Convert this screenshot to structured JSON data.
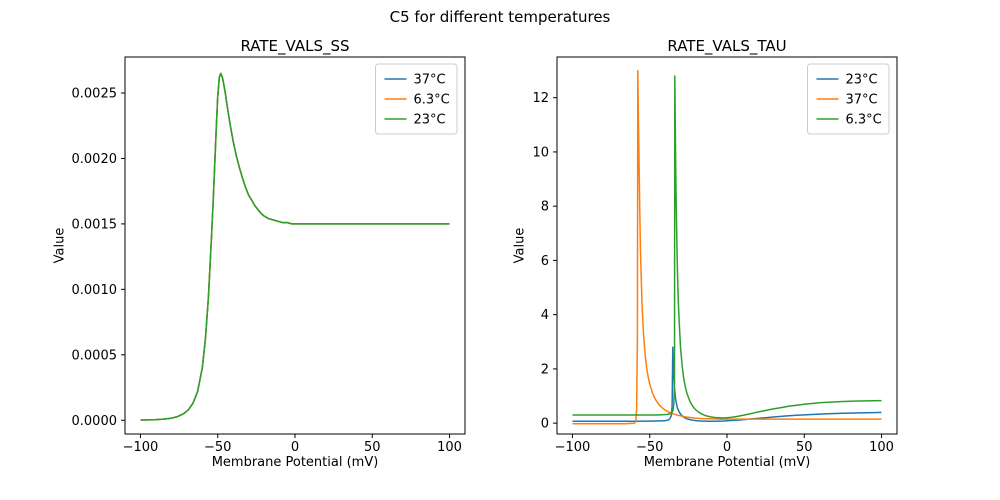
{
  "figure": {
    "title": "C5 for different temperatures"
  },
  "palette": {
    "blue": "#1f77b4",
    "orange": "#ff7f0e",
    "green": "#2ca02c"
  },
  "chart_data": [
    {
      "type": "line",
      "title": "RATE_VALS_SS",
      "xlabel": "Membrane Potential (mV)",
      "ylabel": "Value",
      "xlim": [
        -110,
        110
      ],
      "ylim": [
        -0.000105,
        0.002775
      ],
      "grid": false,
      "legend_position": "upper right",
      "xticks": {
        "values": [
          -100,
          -50,
          0,
          50,
          100
        ],
        "labels": [
          "−100",
          "−50",
          "0",
          "50",
          "100"
        ]
      },
      "yticks": {
        "values": [
          0,
          0.0005,
          0.001,
          0.0015,
          0.002,
          0.0025
        ],
        "labels": [
          "0.0000",
          "0.0005",
          "0.0010",
          "0.0015",
          "0.0020",
          "0.0025"
        ]
      },
      "series": [
        {
          "name": "37°C",
          "color": "#1f77b4",
          "x": [
            -100,
            -95,
            -90,
            -85,
            -80,
            -76,
            -72,
            -69,
            -66,
            -63,
            -60,
            -58,
            -56,
            -54,
            -53,
            -52,
            -51,
            -50,
            -49,
            -48,
            -47,
            -46,
            -45,
            -44,
            -42,
            -40,
            -38,
            -36,
            -34,
            -32,
            -30,
            -28,
            -26,
            -24,
            -22,
            -20,
            -17,
            -14,
            -11,
            -8,
            -5,
            -2,
            0,
            5,
            10,
            20,
            30,
            40,
            50,
            60,
            70,
            80,
            90,
            100
          ],
          "y": [
            2e-06,
            3e-06,
            5e-06,
            9e-06,
            1.6e-05,
            2.8e-05,
            5e-05,
            8e-05,
            0.00013,
            0.00022,
            0.0004,
            0.00062,
            0.00095,
            0.0014,
            0.00166,
            0.00193,
            0.00222,
            0.00247,
            0.00262,
            0.00265,
            0.00262,
            0.00256,
            0.00249,
            0.00241,
            0.00226,
            0.00213,
            0.00202,
            0.00193,
            0.00185,
            0.00178,
            0.00172,
            0.00168,
            0.00164,
            0.00161,
            0.00158,
            0.00156,
            0.00154,
            0.00153,
            0.00152,
            0.00151,
            0.00151,
            0.0015,
            0.0015,
            0.0015,
            0.0015,
            0.0015,
            0.0015,
            0.0015,
            0.0015,
            0.0015,
            0.0015,
            0.0015,
            0.0015,
            0.0015
          ]
        },
        {
          "name": "6.3°C",
          "color": "#ff7f0e",
          "x": [
            -100,
            -95,
            -90,
            -85,
            -80,
            -76,
            -72,
            -69,
            -66,
            -63,
            -60,
            -58,
            -56,
            -54,
            -53,
            -52,
            -51,
            -50,
            -49,
            -48,
            -47,
            -46,
            -45,
            -44,
            -42,
            -40,
            -38,
            -36,
            -34,
            -32,
            -30,
            -28,
            -26,
            -24,
            -22,
            -20,
            -17,
            -14,
            -11,
            -8,
            -5,
            -2,
            0,
            5,
            10,
            20,
            30,
            40,
            50,
            60,
            70,
            80,
            90,
            100
          ],
          "y": [
            2e-06,
            3e-06,
            5e-06,
            9e-06,
            1.6e-05,
            2.8e-05,
            5e-05,
            8e-05,
            0.00013,
            0.00022,
            0.0004,
            0.00062,
            0.00095,
            0.0014,
            0.00166,
            0.00193,
            0.00222,
            0.00247,
            0.00262,
            0.00265,
            0.00262,
            0.00256,
            0.00249,
            0.00241,
            0.00226,
            0.00213,
            0.00202,
            0.00193,
            0.00185,
            0.00178,
            0.00172,
            0.00168,
            0.00164,
            0.00161,
            0.00158,
            0.00156,
            0.00154,
            0.00153,
            0.00152,
            0.00151,
            0.00151,
            0.0015,
            0.0015,
            0.0015,
            0.0015,
            0.0015,
            0.0015,
            0.0015,
            0.0015,
            0.0015,
            0.0015,
            0.0015,
            0.0015,
            0.0015
          ]
        },
        {
          "name": "23°C",
          "color": "#2ca02c",
          "x": [
            -100,
            -95,
            -90,
            -85,
            -80,
            -76,
            -72,
            -69,
            -66,
            -63,
            -60,
            -58,
            -56,
            -54,
            -53,
            -52,
            -51,
            -50,
            -49,
            -48,
            -47,
            -46,
            -45,
            -44,
            -42,
            -40,
            -38,
            -36,
            -34,
            -32,
            -30,
            -28,
            -26,
            -24,
            -22,
            -20,
            -17,
            -14,
            -11,
            -8,
            -5,
            -2,
            0,
            5,
            10,
            20,
            30,
            40,
            50,
            60,
            70,
            80,
            90,
            100
          ],
          "y": [
            2e-06,
            3e-06,
            5e-06,
            9e-06,
            1.6e-05,
            2.8e-05,
            5e-05,
            8e-05,
            0.00013,
            0.00022,
            0.0004,
            0.00062,
            0.00095,
            0.0014,
            0.00166,
            0.00193,
            0.00222,
            0.00247,
            0.00262,
            0.00265,
            0.00262,
            0.00256,
            0.00249,
            0.00241,
            0.00226,
            0.00213,
            0.00202,
            0.00193,
            0.00185,
            0.00178,
            0.00172,
            0.00168,
            0.00164,
            0.00161,
            0.00158,
            0.00156,
            0.00154,
            0.00153,
            0.00152,
            0.00151,
            0.00151,
            0.0015,
            0.0015,
            0.0015,
            0.0015,
            0.0015,
            0.0015,
            0.0015,
            0.0015,
            0.0015,
            0.0015,
            0.0015,
            0.0015,
            0.0015
          ]
        }
      ]
    },
    {
      "type": "line",
      "title": "RATE_VALS_TAU",
      "xlabel": "Membrane Potential (mV)",
      "ylabel": "Value",
      "xlim": [
        -110,
        110
      ],
      "ylim": [
        -0.4,
        13.5
      ],
      "grid": false,
      "legend_position": "upper right",
      "xticks": {
        "values": [
          -100,
          -50,
          0,
          50,
          100
        ],
        "labels": [
          "−100",
          "−50",
          "0",
          "50",
          "100"
        ]
      },
      "yticks": {
        "values": [
          0,
          2,
          4,
          6,
          8,
          10,
          12
        ],
        "labels": [
          "0",
          "2",
          "4",
          "6",
          "8",
          "10",
          "12"
        ]
      },
      "series": [
        {
          "name": "23°C",
          "color": "#1f77b4",
          "x": [
            -100,
            -90,
            -80,
            -70,
            -60,
            -52,
            -46,
            -42,
            -40,
            -38,
            -37,
            -36,
            -35.5,
            -35.1,
            -34.7,
            -34.3,
            -34,
            -33.5,
            -33,
            -32,
            -31,
            -30,
            -29,
            -28,
            -27,
            -26,
            -24,
            -22,
            -20,
            -17,
            -14,
            -11,
            -8,
            -5,
            -2,
            0,
            4,
            8,
            12,
            16,
            20,
            25,
            30,
            35,
            40,
            45,
            50,
            55,
            60,
            65,
            70,
            75,
            80,
            85,
            90,
            95,
            100
          ],
          "y": [
            0.07,
            0.07,
            0.07,
            0.07,
            0.07,
            0.075,
            0.08,
            0.085,
            0.09,
            0.12,
            0.16,
            0.28,
            0.6,
            2.8,
            2.2,
            1.6,
            1.3,
            1.0,
            0.8,
            0.55,
            0.42,
            0.33,
            0.27,
            0.22,
            0.19,
            0.16,
            0.13,
            0.11,
            0.095,
            0.08,
            0.075,
            0.07,
            0.07,
            0.075,
            0.08,
            0.085,
            0.1,
            0.115,
            0.135,
            0.155,
            0.175,
            0.2,
            0.225,
            0.25,
            0.27,
            0.29,
            0.305,
            0.32,
            0.335,
            0.345,
            0.355,
            0.365,
            0.372,
            0.378,
            0.384,
            0.39,
            0.395
          ]
        },
        {
          "name": "37°C",
          "color": "#ff7f0e",
          "x": [
            -100,
            -90,
            -80,
            -72,
            -66,
            -62,
            -60,
            -59,
            -58.5,
            -58,
            -57.7,
            -57.4,
            -57,
            -56.5,
            -56,
            -55,
            -54,
            -53,
            -52,
            -51,
            -50,
            -49,
            -48,
            -47,
            -46,
            -44,
            -42,
            -40,
            -38,
            -36,
            -34,
            -32,
            -30,
            -27,
            -24,
            -21,
            -18,
            -15,
            -12,
            -8,
            -4,
            0,
            10,
            20,
            40,
            60,
            80,
            100
          ],
          "y": [
            -0.02,
            -0.02,
            -0.02,
            -0.02,
            -0.02,
            -0.01,
            0.0,
            0.05,
            0.5,
            3.0,
            13.0,
            11.5,
            10.0,
            8.0,
            6.3,
            4.4,
            3.3,
            2.55,
            2.05,
            1.7,
            1.45,
            1.25,
            1.08,
            0.95,
            0.85,
            0.68,
            0.57,
            0.48,
            0.42,
            0.37,
            0.33,
            0.29,
            0.27,
            0.23,
            0.21,
            0.19,
            0.175,
            0.165,
            0.16,
            0.155,
            0.15,
            0.15,
            0.15,
            0.15,
            0.15,
            0.15,
            0.15,
            0.15
          ]
        },
        {
          "name": "6.3°C",
          "color": "#2ca02c",
          "x": [
            -100,
            -90,
            -80,
            -70,
            -60,
            -52,
            -46,
            -42,
            -39,
            -37,
            -36,
            -35,
            -34.4,
            -34,
            -33.8,
            -33.4,
            -33,
            -32.5,
            -32,
            -31.5,
            -31,
            -30,
            -29,
            -28,
            -27,
            -26,
            -25,
            -24,
            -23,
            -22,
            -21,
            -20,
            -18,
            -16,
            -14,
            -12,
            -10,
            -8,
            -6,
            -4,
            -2,
            0,
            3,
            6,
            10,
            14,
            18,
            22,
            26,
            30,
            35,
            40,
            45,
            50,
            55,
            60,
            65,
            70,
            75,
            80,
            85,
            90,
            95,
            100
          ],
          "y": [
            0.3,
            0.3,
            0.3,
            0.3,
            0.3,
            0.3,
            0.3,
            0.31,
            0.32,
            0.34,
            0.37,
            0.45,
            0.7,
            1.5,
            12.8,
            10.5,
            8.6,
            6.8,
            5.5,
            4.5,
            3.8,
            2.75,
            2.1,
            1.65,
            1.35,
            1.12,
            0.95,
            0.81,
            0.7,
            0.61,
            0.54,
            0.48,
            0.39,
            0.33,
            0.28,
            0.25,
            0.225,
            0.21,
            0.2,
            0.195,
            0.195,
            0.2,
            0.215,
            0.24,
            0.285,
            0.335,
            0.385,
            0.435,
            0.48,
            0.525,
            0.575,
            0.62,
            0.66,
            0.695,
            0.725,
            0.75,
            0.77,
            0.785,
            0.8,
            0.81,
            0.815,
            0.82,
            0.825,
            0.83
          ]
        }
      ]
    }
  ]
}
